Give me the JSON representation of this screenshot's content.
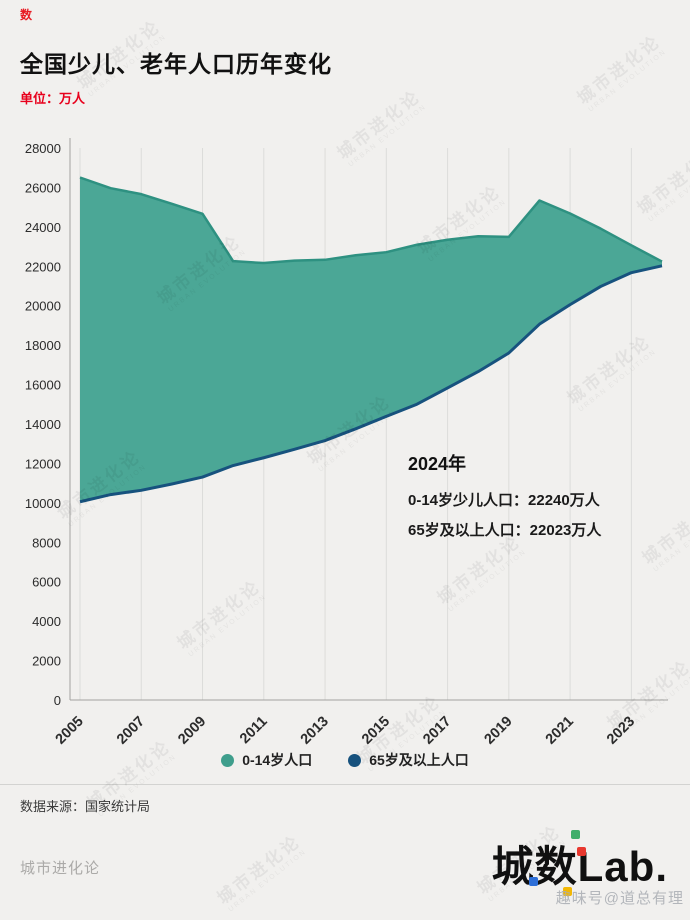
{
  "header": {
    "mini_logo_glyph": "数",
    "title": "全国少儿、老年人口历年变化",
    "unit_label": "单位：万人"
  },
  "chart_data": {
    "type": "area",
    "title": "全国少儿、老年人口历年变化",
    "unit": "万人",
    "x": [
      2005,
      2006,
      2007,
      2008,
      2009,
      2010,
      2011,
      2012,
      2013,
      2014,
      2015,
      2016,
      2017,
      2018,
      2019,
      2020,
      2021,
      2022,
      2023,
      2024
    ],
    "xticks": [
      2005,
      2007,
      2009,
      2011,
      2013,
      2015,
      2017,
      2019,
      2021,
      2023
    ],
    "ylim": [
      0,
      28000
    ],
    "ytick_step": 2000,
    "grid": "vertical",
    "legend_position": "bottom",
    "series": [
      {
        "name": "0-14岁人口",
        "color": "#2e9181",
        "fill": "#4ba796",
        "values": [
          26504,
          25961,
          25660,
          25166,
          24659,
          22259,
          22164,
          22287,
          22329,
          22558,
          22715,
          23091,
          23348,
          23523,
          23492,
          25338,
          24678,
          23908,
          23063,
          22240
        ]
      },
      {
        "name": "65岁及以上人口",
        "color": "#17527e",
        "values": [
          10055,
          10419,
          10636,
          10956,
          11307,
          11894,
          12288,
          12714,
          13161,
          13755,
          14386,
          15003,
          15831,
          16658,
          17603,
          19064,
          20056,
          20978,
          21676,
          22023
        ]
      }
    ],
    "annotation": {
      "title": "2024年",
      "lines": [
        "0-14岁少儿人口：22240万人",
        "65岁及以上人口：22023万人"
      ]
    }
  },
  "legend": {
    "items": [
      {
        "label": "0-14岁人口",
        "color": "#3f9e8c"
      },
      {
        "label": "65岁及以上人口",
        "color": "#17527e"
      }
    ]
  },
  "footer": {
    "source": "数据来源：国家统计局",
    "brand_left": "城市进化论",
    "logo": {
      "cheng": "城",
      "shu": "数",
      "lab": "Lab."
    },
    "overlay_watermark": "趣味号@道总有理"
  },
  "watermark": {
    "cn": "城市进化论",
    "en": "URBAN EVOLUTION"
  }
}
